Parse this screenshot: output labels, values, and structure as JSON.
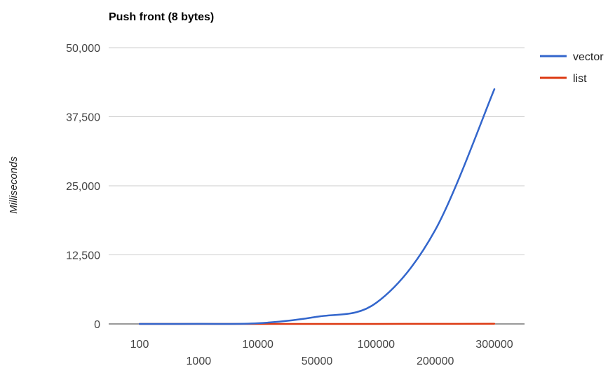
{
  "chart_data": {
    "type": "line",
    "title": "Push front (8 bytes)",
    "xlabel": "",
    "ylabel": "Milliseconds",
    "categories": [
      "100",
      "1000",
      "10000",
      "50000",
      "100000",
      "200000",
      "300000"
    ],
    "ylim": [
      0,
      50000
    ],
    "yticks": [
      "0",
      "12,500",
      "25,000",
      "37,500",
      "50,000"
    ],
    "grid": true,
    "legend_position": "right",
    "series": [
      {
        "name": "vector",
        "color": "#3366cc",
        "values": [
          2,
          10,
          120,
          1300,
          3800,
          17000,
          42500
        ]
      },
      {
        "name": "list",
        "color": "#dc3912",
        "values": [
          0,
          0,
          1,
          4,
          8,
          16,
          25
        ]
      }
    ]
  }
}
